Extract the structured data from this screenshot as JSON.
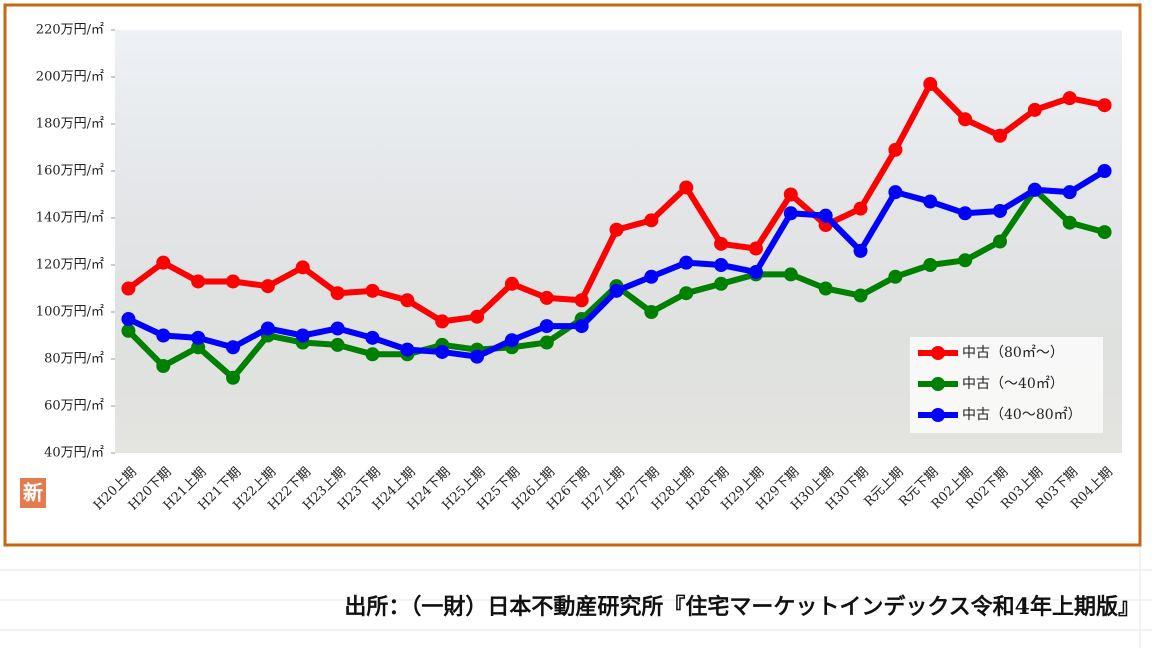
{
  "chart_data": {
    "type": "line",
    "categories": [
      "H20上期",
      "H20下期",
      "H21上期",
      "H21下期",
      "H22上期",
      "H22下期",
      "H23上期",
      "H23下期",
      "H24上期",
      "H24下期",
      "H25上期",
      "H25下期",
      "H26上期",
      "H26下期",
      "H27上期",
      "H27下期",
      "H28上期",
      "H28下期",
      "H29上期",
      "H29下期",
      "H30上期",
      "H30下期",
      "R元上期",
      "R元下期",
      "R02上期",
      "R02下期",
      "R03上期",
      "R03下期",
      "R04上期"
    ],
    "series": [
      {
        "name": "中古（80㎡～）",
        "color": "#ff0000",
        "values": [
          110,
          121,
          113,
          113,
          111,
          119,
          108,
          109,
          105,
          96,
          98,
          112,
          106,
          105,
          135,
          139,
          153,
          129,
          127,
          150,
          137,
          144,
          169,
          197,
          182,
          175,
          186,
          191,
          188
        ]
      },
      {
        "name": "中古（～40㎡）",
        "color": "#008000",
        "values": [
          92,
          77,
          85,
          72,
          90,
          87,
          86,
          82,
          82,
          86,
          84,
          85,
          87,
          97,
          111,
          100,
          108,
          112,
          116,
          116,
          110,
          107,
          115,
          120,
          122,
          130,
          152,
          138,
          134
        ]
      },
      {
        "name": "中古（40～80㎡）",
        "color": "#0000ff",
        "values": [
          97,
          90,
          89,
          85,
          93,
          90,
          93,
          89,
          84,
          83,
          81,
          88,
          94,
          94,
          109,
          115,
          121,
          120,
          117,
          142,
          141,
          126,
          151,
          147,
          142,
          143,
          152,
          151,
          160
        ]
      }
    ],
    "ylim": [
      40,
      220
    ],
    "yticks": [
      {
        "value": 40,
        "label": "40万円/㎡"
      },
      {
        "value": 60,
        "label": "60万円/㎡"
      },
      {
        "value": 80,
        "label": "80万円/㎡"
      },
      {
        "value": 100,
        "label": "100万円/㎡"
      },
      {
        "value": 120,
        "label": "120万円/㎡"
      },
      {
        "value": 140,
        "label": "140万円/㎡"
      },
      {
        "value": 160,
        "label": "160万円/㎡"
      },
      {
        "value": 180,
        "label": "180万円/㎡"
      },
      {
        "value": 200,
        "label": "200万円/㎡"
      },
      {
        "value": 220,
        "label": "220万円/㎡"
      }
    ],
    "legend": "lower right",
    "badge": "新",
    "source": "出所：（一財）日本不動産研究所『住宅マーケットインデックス令和4年上期版』"
  }
}
